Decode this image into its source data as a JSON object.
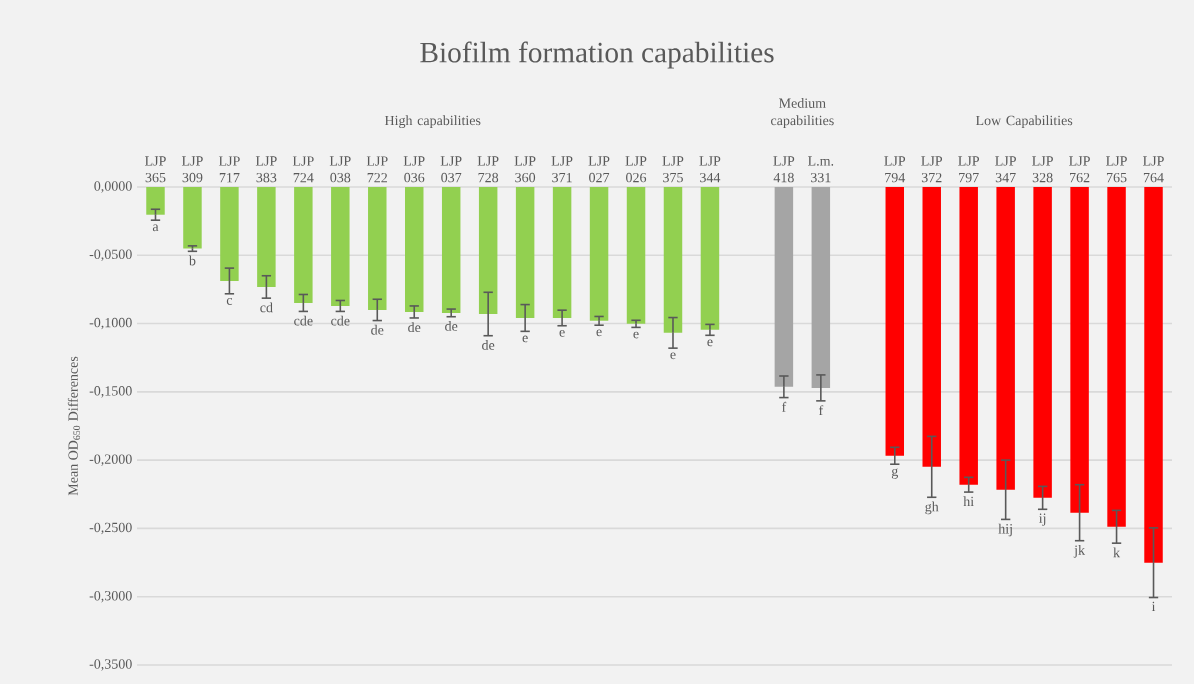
{
  "chart_data": {
    "type": "bar",
    "title": "Biofilm formation capabilities",
    "ylabel": "Mean OD$_{650}$ Differences",
    "categories": [
      "LJP 365",
      "LJP 309",
      "LJP 717",
      "LJP 383",
      "LJP 724",
      "LJP 038",
      "LJP 722",
      "LJP 036",
      "LJP 037",
      "LJP 728",
      "LJP 360",
      "LJP 371",
      "LJP 027",
      "LJP 026",
      "LJP 375",
      "LJP 344",
      null,
      "LJP 418",
      "L.m. 331",
      null,
      "LJP 794",
      "LJP 372",
      "LJP 797",
      "LJP 347",
      "LJP 328",
      "LJP 762",
      "LJP 765",
      "LJP 764"
    ],
    "values": [
      -0.0203,
      -0.0451,
      -0.0688,
      -0.0732,
      -0.0849,
      -0.0871,
      -0.09,
      -0.0915,
      -0.0922,
      -0.093,
      -0.0959,
      -0.0959,
      -0.098,
      -0.1002,
      -0.1068,
      -0.1046,
      null,
      -0.1463,
      -0.1471,
      null,
      -0.1968,
      -0.2049,
      -0.218,
      -0.2217,
      -0.2276,
      -0.2385,
      -0.2488,
      -0.2751
    ],
    "errors": [
      0.004,
      0.002,
      0.0094,
      0.0082,
      0.0062,
      0.004,
      0.0078,
      0.0044,
      0.0028,
      0.0159,
      0.0098,
      0.0057,
      0.0032,
      0.0026,
      0.0112,
      0.004,
      null,
      0.0079,
      0.0095,
      null,
      0.0062,
      0.0223,
      0.0054,
      0.0217,
      0.0084,
      0.0205,
      0.012,
      0.0255
    ],
    "colors": [
      "#92d050",
      "#92d050",
      "#92d050",
      "#92d050",
      "#92d050",
      "#92d050",
      "#92d050",
      "#92d050",
      "#92d050",
      "#92d050",
      "#92d050",
      "#92d050",
      "#92d050",
      "#92d050",
      "#92d050",
      "#92d050",
      null,
      "#a5a5a5",
      "#a5a5a5",
      null,
      "#ff0000",
      "#ff0000",
      "#ff0000",
      "#ff0000",
      "#ff0000",
      "#ff0000",
      "#ff0000",
      "#ff0000"
    ],
    "ylim": [
      -0.35,
      0
    ],
    "yticks": [
      {
        "value": 0,
        "label": "0,0000"
      },
      {
        "value": -0.05,
        "label": "-0,0500"
      },
      {
        "value": -0.1,
        "label": "-0,1000"
      },
      {
        "value": -0.15,
        "label": "-0,1500"
      },
      {
        "value": -0.2,
        "label": "-0,2000"
      },
      {
        "value": -0.25,
        "label": "-0,2500"
      },
      {
        "value": -0.3,
        "label": "-0,3000"
      },
      {
        "value": -0.35,
        "label": "-0,3500"
      }
    ],
    "grid": "y",
    "annotations": [
      "High capabilities",
      "Medium capabilities",
      "Low Capabilities",
      {
        "text": "a",
        "x": "LJP 365",
        "y": -0.0203
      },
      {
        "text": "b",
        "x": "LJP 309",
        "y": -0.0451
      },
      {
        "text": "c",
        "x": "LJP 717",
        "y": -0.0688
      },
      {
        "text": "cd",
        "x": "LJP 383",
        "y": -0.0732
      },
      {
        "text": "cde",
        "x": "LJP 724",
        "y": -0.0849
      },
      {
        "text": "cde",
        "x": "LJP 038",
        "y": -0.0871
      },
      {
        "text": "de",
        "x": "LJP 722",
        "y": -0.09
      },
      {
        "text": "de",
        "x": "LJP 036",
        "y": -0.0915
      },
      {
        "text": "de",
        "x": "LJP 037",
        "y": -0.0922
      },
      {
        "text": "de",
        "x": "LJP 728",
        "y": -0.093
      },
      {
        "text": "e",
        "x": "LJP 360",
        "y": -0.0959
      },
      {
        "text": "e",
        "x": "LJP 371",
        "y": -0.0959
      },
      {
        "text": "e",
        "x": "LJP 027",
        "y": -0.098
      },
      {
        "text": "e",
        "x": "LJP 026",
        "y": -0.1002
      },
      {
        "text": "e",
        "x": "LJP 375",
        "y": -0.1068
      },
      {
        "text": "e",
        "x": "LJP 344",
        "y": -0.1046
      },
      {
        "text": "f",
        "x": "LJP 418",
        "y": -0.1463
      },
      {
        "text": "f",
        "x": "L.m. 331",
        "y": -0.1471
      },
      {
        "text": "g",
        "x": "LJP 794",
        "y": -0.1968
      },
      {
        "text": "gh",
        "x": "LJP 372",
        "y": -0.2049
      },
      {
        "text": "hi",
        "x": "LJP 797",
        "y": -0.218
      },
      {
        "text": "hij",
        "x": "LJP 347",
        "y": -0.2217
      },
      {
        "text": "ij",
        "x": "LJP 328",
        "y": -0.2276
      },
      {
        "text": "jk",
        "x": "LJP 762",
        "y": -0.2385
      },
      {
        "text": "k",
        "x": "LJP 765",
        "y": -0.2488
      },
      {
        "text": "i",
        "x": "LJP 764",
        "y": -0.2751
      }
    ]
  }
}
